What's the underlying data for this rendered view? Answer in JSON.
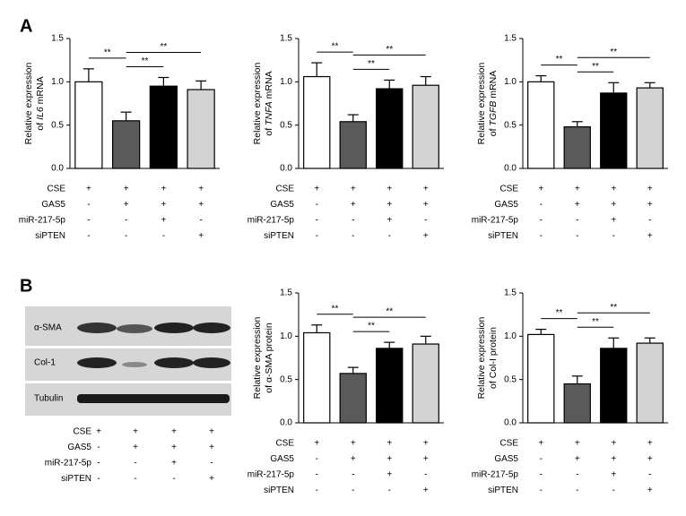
{
  "panel_labels": [
    "A",
    "B"
  ],
  "chart_data": [
    {
      "type": "bar",
      "ylabel": {
        "line1": "Relative expression",
        "prefix": "of ",
        "term": "IL6",
        "suffix": " mRNA"
      },
      "term_italic": true,
      "ylim": [
        0,
        1.5
      ],
      "yticks": [
        {
          "value": 0,
          "label": "0.0"
        },
        0.5,
        {
          "value": 1,
          "label": "1.0"
        },
        1.5
      ],
      "values": [
        1.0,
        0.55,
        0.95,
        0.91
      ],
      "errors": [
        0.15,
        0.1,
        0.1,
        0.1
      ],
      "colors": [
        "#ffffff",
        "#5a5a5a",
        "#000000",
        "#d3d3d3"
      ],
      "significance": [
        {
          "from": 0,
          "to": 1,
          "label": "**"
        },
        {
          "from": 1,
          "to": 2,
          "label": "**"
        },
        {
          "from": 1,
          "to": 3,
          "label": "**"
        }
      ],
      "conditions": [
        {
          "name": "CSE",
          "signs": [
            "+",
            "+",
            "+",
            "+"
          ]
        },
        {
          "name": "GAS5",
          "signs": [
            "-",
            "+",
            "+",
            "+"
          ]
        },
        {
          "name": "miR-217-5p",
          "signs": [
            "-",
            "-",
            "+",
            "-"
          ]
        },
        {
          "name": "siPTEN",
          "signs": [
            "-",
            "-",
            "-",
            "+"
          ]
        }
      ]
    },
    {
      "type": "bar",
      "ylabel": {
        "line1": "Relative expression",
        "prefix": "of ",
        "term": "TNFA",
        "suffix": " mRNA"
      },
      "term_italic": true,
      "ylim": [
        0,
        1.5
      ],
      "yticks": [
        {
          "value": 0,
          "label": "0.0"
        },
        0.5,
        {
          "value": 1,
          "label": "1.0"
        },
        1.5
      ],
      "values": [
        1.06,
        0.54,
        0.92,
        0.96
      ],
      "errors": [
        0.16,
        0.08,
        0.1,
        0.1
      ],
      "colors": [
        "#ffffff",
        "#5a5a5a",
        "#000000",
        "#d3d3d3"
      ],
      "significance": [
        {
          "from": 0,
          "to": 1,
          "label": "**"
        },
        {
          "from": 1,
          "to": 2,
          "label": "**"
        },
        {
          "from": 1,
          "to": 3,
          "label": "**"
        }
      ],
      "conditions": [
        {
          "name": "CSE",
          "signs": [
            "+",
            "+",
            "+",
            "+"
          ]
        },
        {
          "name": "GAS5",
          "signs": [
            "-",
            "+",
            "+",
            "+"
          ]
        },
        {
          "name": "miR-217-5p",
          "signs": [
            "-",
            "-",
            "+",
            "-"
          ]
        },
        {
          "name": "siPTEN",
          "signs": [
            "-",
            "-",
            "-",
            "+"
          ]
        }
      ]
    },
    {
      "type": "bar",
      "ylabel": {
        "line1": "Relative expression",
        "prefix": "of ",
        "term": "TGFB",
        "suffix": " mRNA"
      },
      "term_italic": true,
      "ylim": [
        0,
        1.5
      ],
      "yticks": [
        {
          "value": 0,
          "label": "0.0"
        },
        0.5,
        {
          "value": 1,
          "label": "1.0"
        },
        1.5
      ],
      "values": [
        1.0,
        0.48,
        0.87,
        0.93
      ],
      "errors": [
        0.07,
        0.06,
        0.12,
        0.06
      ],
      "colors": [
        "#ffffff",
        "#5a5a5a",
        "#000000",
        "#d3d3d3"
      ],
      "significance": [
        {
          "from": 0,
          "to": 1,
          "label": "**"
        },
        {
          "from": 1,
          "to": 2,
          "label": "**"
        },
        {
          "from": 1,
          "to": 3,
          "label": "**"
        }
      ],
      "conditions": [
        {
          "name": "CSE",
          "signs": [
            "+",
            "+",
            "+",
            "+"
          ]
        },
        {
          "name": "GAS5",
          "signs": [
            "-",
            "+",
            "+",
            "+"
          ]
        },
        {
          "name": "miR-217-5p",
          "signs": [
            "-",
            "-",
            "+",
            "-"
          ]
        },
        {
          "name": "siPTEN",
          "signs": [
            "-",
            "-",
            "-",
            "+"
          ]
        }
      ]
    },
    {
      "type": "bar",
      "ylabel": {
        "line1": "Relative expression",
        "prefix": "of ",
        "term": "α-SMA",
        "suffix": " protein"
      },
      "term_italic": false,
      "ylim": [
        0,
        1.5
      ],
      "yticks": [
        {
          "value": 0,
          "label": "0.0"
        },
        0.5,
        {
          "value": 1,
          "label": "1.0"
        },
        1.5
      ],
      "values": [
        1.04,
        0.57,
        0.86,
        0.91
      ],
      "errors": [
        0.09,
        0.07,
        0.07,
        0.09
      ],
      "colors": [
        "#ffffff",
        "#5a5a5a",
        "#000000",
        "#d3d3d3"
      ],
      "significance": [
        {
          "from": 0,
          "to": 1,
          "label": "**"
        },
        {
          "from": 1,
          "to": 2,
          "label": "**"
        },
        {
          "from": 1,
          "to": 3,
          "label": "**"
        }
      ],
      "conditions": [
        {
          "name": "CSE",
          "signs": [
            "+",
            "+",
            "+",
            "+"
          ]
        },
        {
          "name": "GAS5",
          "signs": [
            "-",
            "+",
            "+",
            "+"
          ]
        },
        {
          "name": "miR-217-5p",
          "signs": [
            "-",
            "-",
            "+",
            "-"
          ]
        },
        {
          "name": "siPTEN",
          "signs": [
            "-",
            "-",
            "-",
            "+"
          ]
        }
      ]
    },
    {
      "type": "bar",
      "ylabel": {
        "line1": "Relative expression",
        "prefix": "of ",
        "term": "Col-I",
        "suffix": " protein"
      },
      "term_italic": false,
      "ylim": [
        0,
        1.5
      ],
      "yticks": [
        {
          "value": 0,
          "label": "0.0"
        },
        0.5,
        {
          "value": 1,
          "label": "1.0"
        },
        1.5
      ],
      "values": [
        1.02,
        0.45,
        0.86,
        0.92
      ],
      "errors": [
        0.06,
        0.09,
        0.12,
        0.06
      ],
      "colors": [
        "#ffffff",
        "#5a5a5a",
        "#000000",
        "#d3d3d3"
      ],
      "significance": [
        {
          "from": 0,
          "to": 1,
          "label": "**"
        },
        {
          "from": 1,
          "to": 2,
          "label": "**"
        },
        {
          "from": 1,
          "to": 3,
          "label": "**"
        }
      ],
      "conditions": [
        {
          "name": "CSE",
          "signs": [
            "+",
            "+",
            "+",
            "+"
          ]
        },
        {
          "name": "GAS5",
          "signs": [
            "-",
            "+",
            "+",
            "+"
          ]
        },
        {
          "name": "miR-217-5p",
          "signs": [
            "-",
            "-",
            "+",
            "-"
          ]
        },
        {
          "name": "siPTEN",
          "signs": [
            "-",
            "-",
            "-",
            "+"
          ]
        }
      ]
    }
  ],
  "blot": {
    "bands": [
      "α-SMA",
      "Col-1",
      "Tubulin"
    ],
    "conditions": [
      {
        "name": "CSE",
        "signs": [
          "+",
          "+",
          "+",
          "+"
        ]
      },
      {
        "name": "GAS5",
        "signs": [
          "-",
          "+",
          "+",
          "+"
        ]
      },
      {
        "name": "miR-217-5p",
        "signs": [
          "-",
          "-",
          "+",
          "-"
        ]
      },
      {
        "name": "siPTEN",
        "signs": [
          "-",
          "-",
          "-",
          "+"
        ]
      }
    ]
  }
}
